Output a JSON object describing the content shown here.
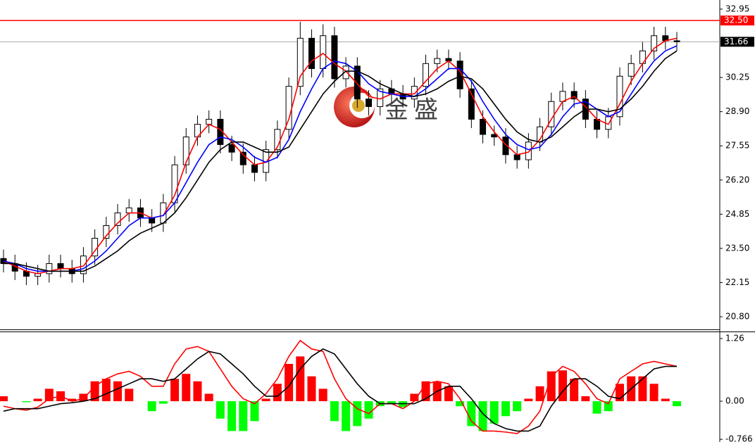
{
  "chart_data": [
    {
      "type": "candlestick",
      "watermark": "金盛",
      "ylim": [
        20.3,
        33.31
      ],
      "yticks": [
        32.95,
        30.25,
        {
          "value": 28.9,
          "label": "28.90"
        },
        27.55,
        {
          "value": 26.2,
          "label": "26.20"
        },
        24.85,
        {
          "value": 23.5,
          "label": "23.50"
        },
        22.15,
        {
          "value": 20.8,
          "label": "20.80"
        }
      ],
      "level_lines": [
        {
          "value": 32.5,
          "label": "32.50",
          "color": "#ff0000"
        },
        {
          "value": 31.66,
          "label": "31.66",
          "color": "#000000"
        }
      ],
      "open": [
        23.1,
        22.9,
        22.6,
        22.4,
        22.5,
        22.9,
        22.7,
        22.5,
        23.2,
        23.9,
        24.4,
        24.9,
        25.1,
        24.7,
        24.5,
        25.3,
        26.8,
        27.9,
        28.4,
        28.6,
        27.6,
        27.3,
        26.8,
        26.5,
        27.4,
        28.2,
        29.9,
        31.8,
        30.6,
        31.9,
        30.2,
        30.7,
        29.4,
        29.1,
        29.8,
        29.6,
        29.4,
        29.9,
        30.8,
        31.0,
        30.9,
        29.8,
        28.6,
        28.0,
        27.9,
        27.2,
        27.0,
        27.7,
        28.3,
        29.3,
        29.7,
        29.4,
        28.6,
        28.2,
        28.7,
        30.3,
        30.8,
        31.3,
        31.9,
        31.7
      ],
      "high": [
        23.45,
        23.25,
        22.95,
        22.85,
        23.25,
        23.25,
        23.05,
        23.55,
        24.25,
        24.75,
        25.25,
        25.45,
        25.45,
        25.05,
        25.65,
        27.15,
        28.25,
        28.75,
        28.95,
        28.95,
        27.95,
        27.65,
        27.15,
        27.75,
        28.55,
        30.25,
        32.45,
        32.15,
        32.35,
        32.25,
        31.05,
        31.05,
        29.75,
        30.15,
        30.15,
        29.95,
        30.25,
        31.15,
        31.35,
        31.35,
        31.25,
        30.15,
        28.95,
        28.35,
        28.25,
        27.55,
        28.05,
        28.65,
        29.65,
        30.05,
        30.05,
        29.75,
        28.95,
        29.05,
        30.65,
        31.15,
        31.65,
        32.25,
        32.25,
        32.05
      ],
      "low": [
        22.55,
        22.25,
        22.05,
        22.05,
        22.15,
        22.35,
        22.15,
        22.15,
        22.85,
        23.55,
        24.05,
        24.55,
        24.35,
        24.15,
        24.15,
        24.95,
        26.45,
        27.55,
        28.05,
        27.25,
        26.95,
        26.45,
        26.15,
        26.15,
        27.05,
        27.85,
        29.55,
        30.25,
        30.25,
        29.85,
        29.85,
        29.05,
        28.75,
        28.75,
        29.25,
        29.05,
        29.05,
        29.55,
        30.45,
        30.55,
        29.45,
        28.25,
        27.65,
        27.55,
        26.85,
        26.65,
        26.65,
        27.35,
        27.95,
        28.95,
        29.05,
        28.25,
        27.85,
        27.85,
        28.35,
        29.95,
        30.45,
        30.95,
        31.35,
        31.31
      ],
      "close": [
        22.9,
        22.6,
        22.4,
        22.5,
        22.9,
        22.7,
        22.5,
        23.2,
        23.9,
        24.4,
        24.9,
        25.1,
        24.7,
        24.5,
        25.3,
        26.8,
        27.9,
        28.4,
        28.6,
        27.6,
        27.3,
        26.8,
        26.5,
        27.4,
        28.2,
        29.9,
        31.8,
        30.6,
        31.9,
        30.2,
        30.7,
        29.4,
        29.1,
        29.8,
        29.6,
        29.4,
        29.9,
        30.8,
        31.0,
        30.9,
        29.8,
        28.6,
        28.0,
        27.9,
        27.2,
        27.0,
        27.7,
        28.3,
        29.3,
        29.7,
        29.4,
        28.6,
        28.2,
        28.7,
        30.3,
        30.8,
        31.3,
        31.9,
        31.7,
        31.66
      ],
      "series": [
        {
          "color": "#ff0000",
          "values": [
            23.0,
            22.8,
            22.6,
            22.5,
            22.6,
            22.7,
            22.7,
            22.8,
            23.4,
            24.0,
            24.5,
            24.9,
            24.9,
            24.7,
            24.8,
            25.6,
            26.9,
            27.9,
            28.4,
            28.2,
            27.7,
            27.2,
            26.8,
            26.9,
            27.5,
            28.6,
            30.3,
            30.9,
            31.2,
            30.8,
            30.5,
            30.0,
            29.5,
            29.4,
            29.6,
            29.6,
            29.6,
            30.1,
            30.6,
            30.9,
            30.5,
            29.6,
            28.7,
            28.1,
            27.6,
            27.2,
            27.3,
            27.8,
            28.6,
            29.3,
            29.5,
            29.1,
            28.6,
            28.4,
            29.2,
            30.1,
            30.8,
            31.4,
            31.7,
            31.8
          ]
        },
        {
          "color": "#0000ff",
          "values": [
            23.0,
            22.9,
            22.7,
            22.6,
            22.6,
            22.6,
            22.6,
            22.7,
            23.0,
            23.4,
            23.9,
            24.4,
            24.7,
            24.7,
            24.8,
            25.3,
            26.1,
            26.9,
            27.6,
            27.9,
            27.8,
            27.5,
            27.1,
            26.9,
            27.1,
            27.8,
            28.9,
            29.8,
            30.6,
            30.9,
            30.8,
            30.5,
            30.0,
            29.7,
            29.6,
            29.5,
            29.5,
            29.8,
            30.2,
            30.6,
            30.6,
            30.1,
            29.3,
            28.6,
            28.0,
            27.6,
            27.4,
            27.5,
            28.0,
            28.7,
            29.2,
            29.3,
            29.0,
            28.7,
            28.9,
            29.6,
            30.3,
            30.9,
            31.3,
            31.5
          ]
        },
        {
          "color": "#000000",
          "values": [
            22.9,
            22.9,
            22.8,
            22.7,
            22.6,
            22.6,
            22.6,
            22.6,
            22.8,
            23.1,
            23.4,
            23.8,
            24.1,
            24.3,
            24.5,
            24.9,
            25.5,
            26.2,
            26.9,
            27.4,
            27.7,
            27.7,
            27.5,
            27.3,
            27.3,
            27.5,
            28.2,
            28.9,
            29.6,
            30.1,
            30.5,
            30.5,
            30.3,
            30.0,
            29.8,
            29.6,
            29.5,
            29.6,
            29.8,
            30.1,
            30.3,
            30.2,
            29.8,
            29.2,
            28.6,
            28.1,
            27.8,
            27.7,
            27.9,
            28.3,
            28.7,
            29.0,
            29.0,
            28.9,
            29.0,
            29.4,
            29.9,
            30.5,
            31.0,
            31.3
          ]
        }
      ]
    },
    {
      "type": "macd",
      "ylim": [
        -0.82,
        1.387
      ],
      "yticks": [
        1.26,
        {
          "value": 0,
          "label": "0.00"
        },
        -0.766
      ],
      "color_positive": "#ff0000",
      "color_negative": "#00ff00",
      "histogram": [
        0.1,
        0.0,
        -0.02,
        0.05,
        0.25,
        0.2,
        0.05,
        0.15,
        0.4,
        0.45,
        0.4,
        0.25,
        0.0,
        -0.2,
        -0.05,
        0.45,
        0.55,
        0.4,
        0.15,
        -0.35,
        -0.6,
        -0.6,
        -0.4,
        0.05,
        0.35,
        0.75,
        0.9,
        0.5,
        0.25,
        -0.4,
        -0.6,
        -0.5,
        -0.35,
        -0.1,
        -0.05,
        -0.12,
        0.15,
        0.4,
        0.4,
        0.3,
        -0.1,
        -0.5,
        -0.6,
        -0.45,
        -0.3,
        -0.2,
        0.05,
        0.3,
        0.6,
        0.62,
        0.45,
        0.1,
        -0.25,
        -0.2,
        0.35,
        0.5,
        0.5,
        0.35,
        0.05,
        -0.1
      ],
      "series": [
        {
          "color": "#ff0000",
          "values": [
            -0.1,
            -0.15,
            -0.18,
            -0.12,
            0.05,
            0.1,
            0.0,
            0.05,
            0.3,
            0.45,
            0.55,
            0.6,
            0.5,
            0.3,
            0.3,
            0.75,
            1.05,
            1.1,
            1.0,
            0.65,
            0.3,
            0.05,
            -0.05,
            0.15,
            0.45,
            0.9,
            1.22,
            1.05,
            1.0,
            0.45,
            0.05,
            -0.15,
            -0.25,
            -0.05,
            -0.05,
            -0.15,
            0.0,
            0.35,
            0.4,
            0.35,
            0.05,
            -0.4,
            -0.6,
            -0.6,
            -0.62,
            -0.65,
            -0.5,
            -0.2,
            0.5,
            0.7,
            0.6,
            0.35,
            0.05,
            -0.05,
            0.45,
            0.6,
            0.75,
            0.8,
            0.75,
            0.7
          ]
        },
        {
          "color": "#000000",
          "values": [
            -0.2,
            -0.15,
            -0.15,
            -0.15,
            -0.1,
            -0.05,
            -0.03,
            0.0,
            0.05,
            0.15,
            0.25,
            0.35,
            0.45,
            0.45,
            0.4,
            0.45,
            0.65,
            0.85,
            1.0,
            0.95,
            0.75,
            0.55,
            0.3,
            0.1,
            0.1,
            0.3,
            0.65,
            0.9,
            1.05,
            0.95,
            0.65,
            0.35,
            0.1,
            -0.05,
            -0.05,
            -0.05,
            -0.05,
            0.05,
            0.2,
            0.3,
            0.3,
            0.05,
            -0.25,
            -0.45,
            -0.55,
            -0.6,
            -0.6,
            -0.5,
            -0.1,
            0.2,
            0.45,
            0.45,
            0.3,
            0.1,
            0.05,
            0.25,
            0.45,
            0.65,
            0.7,
            0.7
          ]
        }
      ]
    }
  ]
}
